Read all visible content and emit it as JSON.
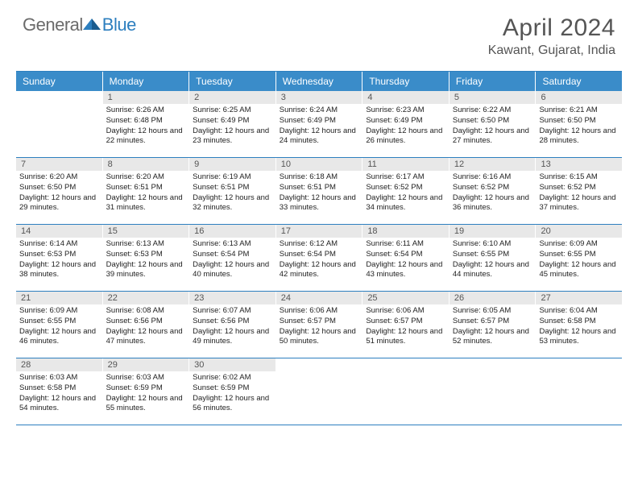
{
  "logo": {
    "general": "General",
    "blue": "Blue"
  },
  "title": "April 2024",
  "location": "Kawant, Gujarat, India",
  "colors": {
    "header_bg": "#3a8cc9",
    "border": "#2d7fbf",
    "daynum_bg": "#e8e8e8",
    "logo_gray": "#6b6b6b",
    "logo_blue": "#2d7fbf"
  },
  "day_headers": [
    "Sunday",
    "Monday",
    "Tuesday",
    "Wednesday",
    "Thursday",
    "Friday",
    "Saturday"
  ],
  "weeks": [
    [
      null,
      {
        "n": "1",
        "sr": "6:26 AM",
        "ss": "6:48 PM",
        "dl": "12 hours and 22 minutes."
      },
      {
        "n": "2",
        "sr": "6:25 AM",
        "ss": "6:49 PM",
        "dl": "12 hours and 23 minutes."
      },
      {
        "n": "3",
        "sr": "6:24 AM",
        "ss": "6:49 PM",
        "dl": "12 hours and 24 minutes."
      },
      {
        "n": "4",
        "sr": "6:23 AM",
        "ss": "6:49 PM",
        "dl": "12 hours and 26 minutes."
      },
      {
        "n": "5",
        "sr": "6:22 AM",
        "ss": "6:50 PM",
        "dl": "12 hours and 27 minutes."
      },
      {
        "n": "6",
        "sr": "6:21 AM",
        "ss": "6:50 PM",
        "dl": "12 hours and 28 minutes."
      }
    ],
    [
      {
        "n": "7",
        "sr": "6:20 AM",
        "ss": "6:50 PM",
        "dl": "12 hours and 29 minutes."
      },
      {
        "n": "8",
        "sr": "6:20 AM",
        "ss": "6:51 PM",
        "dl": "12 hours and 31 minutes."
      },
      {
        "n": "9",
        "sr": "6:19 AM",
        "ss": "6:51 PM",
        "dl": "12 hours and 32 minutes."
      },
      {
        "n": "10",
        "sr": "6:18 AM",
        "ss": "6:51 PM",
        "dl": "12 hours and 33 minutes."
      },
      {
        "n": "11",
        "sr": "6:17 AM",
        "ss": "6:52 PM",
        "dl": "12 hours and 34 minutes."
      },
      {
        "n": "12",
        "sr": "6:16 AM",
        "ss": "6:52 PM",
        "dl": "12 hours and 36 minutes."
      },
      {
        "n": "13",
        "sr": "6:15 AM",
        "ss": "6:52 PM",
        "dl": "12 hours and 37 minutes."
      }
    ],
    [
      {
        "n": "14",
        "sr": "6:14 AM",
        "ss": "6:53 PM",
        "dl": "12 hours and 38 minutes."
      },
      {
        "n": "15",
        "sr": "6:13 AM",
        "ss": "6:53 PM",
        "dl": "12 hours and 39 minutes."
      },
      {
        "n": "16",
        "sr": "6:13 AM",
        "ss": "6:54 PM",
        "dl": "12 hours and 40 minutes."
      },
      {
        "n": "17",
        "sr": "6:12 AM",
        "ss": "6:54 PM",
        "dl": "12 hours and 42 minutes."
      },
      {
        "n": "18",
        "sr": "6:11 AM",
        "ss": "6:54 PM",
        "dl": "12 hours and 43 minutes."
      },
      {
        "n": "19",
        "sr": "6:10 AM",
        "ss": "6:55 PM",
        "dl": "12 hours and 44 minutes."
      },
      {
        "n": "20",
        "sr": "6:09 AM",
        "ss": "6:55 PM",
        "dl": "12 hours and 45 minutes."
      }
    ],
    [
      {
        "n": "21",
        "sr": "6:09 AM",
        "ss": "6:55 PM",
        "dl": "12 hours and 46 minutes."
      },
      {
        "n": "22",
        "sr": "6:08 AM",
        "ss": "6:56 PM",
        "dl": "12 hours and 47 minutes."
      },
      {
        "n": "23",
        "sr": "6:07 AM",
        "ss": "6:56 PM",
        "dl": "12 hours and 49 minutes."
      },
      {
        "n": "24",
        "sr": "6:06 AM",
        "ss": "6:57 PM",
        "dl": "12 hours and 50 minutes."
      },
      {
        "n": "25",
        "sr": "6:06 AM",
        "ss": "6:57 PM",
        "dl": "12 hours and 51 minutes."
      },
      {
        "n": "26",
        "sr": "6:05 AM",
        "ss": "6:57 PM",
        "dl": "12 hours and 52 minutes."
      },
      {
        "n": "27",
        "sr": "6:04 AM",
        "ss": "6:58 PM",
        "dl": "12 hours and 53 minutes."
      }
    ],
    [
      {
        "n": "28",
        "sr": "6:03 AM",
        "ss": "6:58 PM",
        "dl": "12 hours and 54 minutes."
      },
      {
        "n": "29",
        "sr": "6:03 AM",
        "ss": "6:59 PM",
        "dl": "12 hours and 55 minutes."
      },
      {
        "n": "30",
        "sr": "6:02 AM",
        "ss": "6:59 PM",
        "dl": "12 hours and 56 minutes."
      },
      null,
      null,
      null,
      null
    ]
  ],
  "labels": {
    "sunrise": "Sunrise:",
    "sunset": "Sunset:",
    "daylight": "Daylight:"
  }
}
